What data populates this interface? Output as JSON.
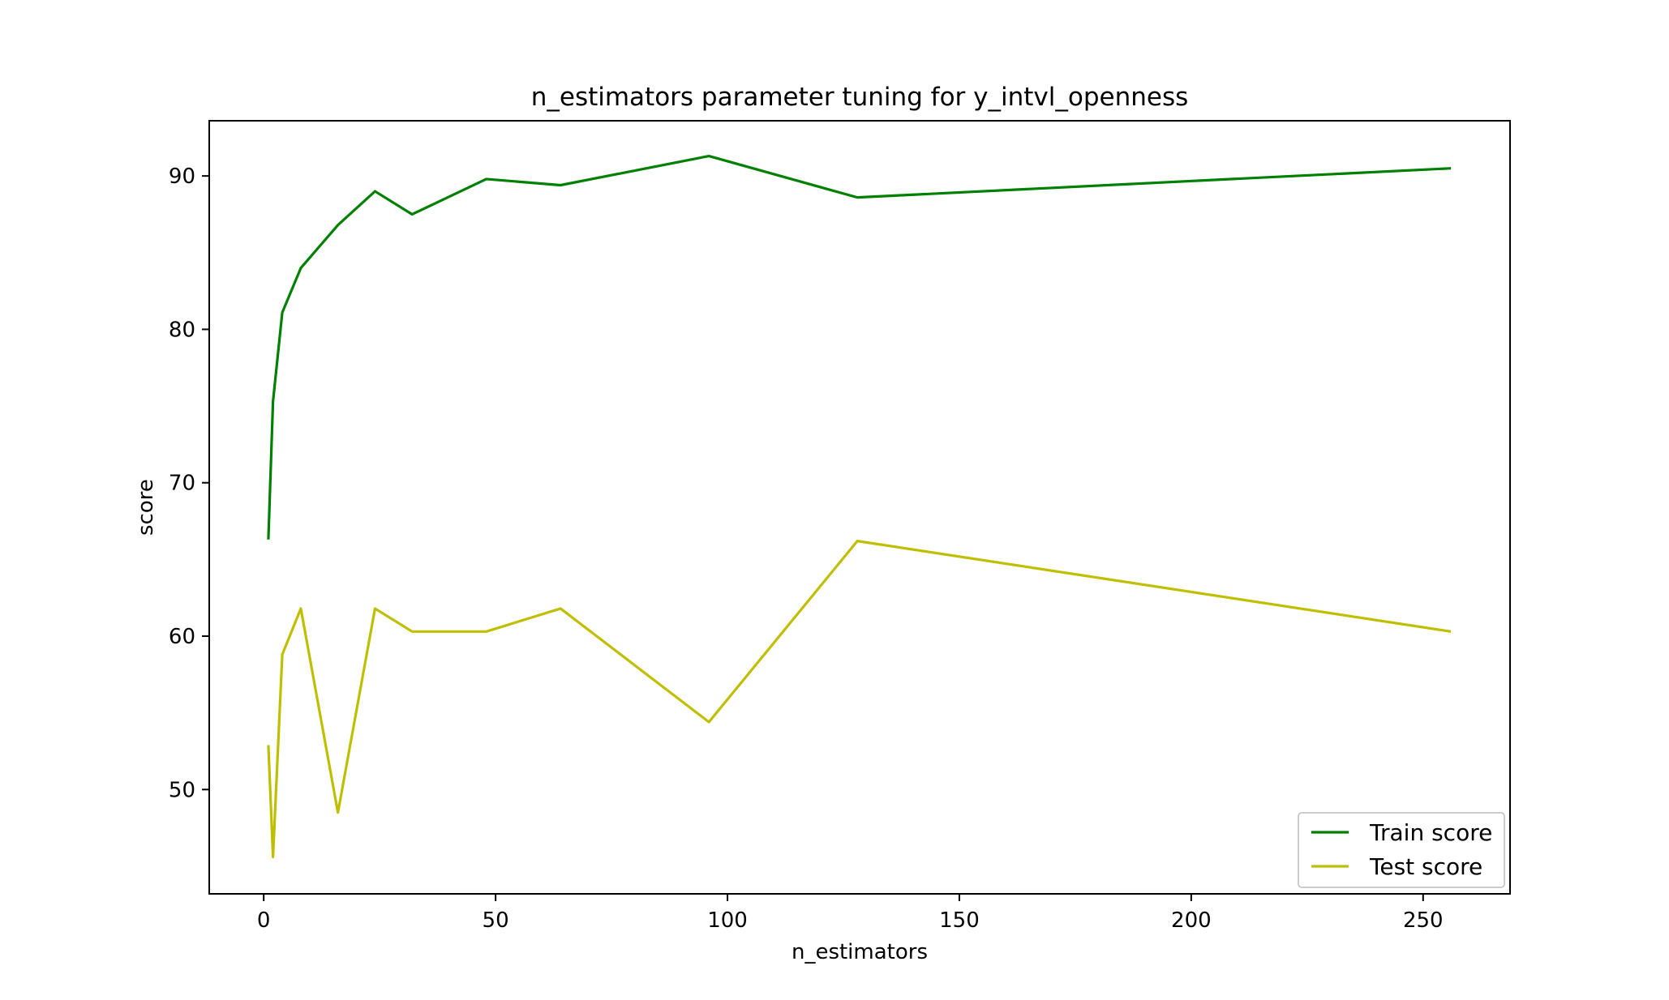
{
  "chart_data": {
    "type": "line",
    "title": "n_estimators parameter tuning for y_intvl_openness",
    "xlabel": "n_estimators",
    "ylabel": "score",
    "x": [
      1,
      2,
      4,
      8,
      16,
      24,
      32,
      48,
      64,
      96,
      128,
      256
    ],
    "xlim": [
      -11.75,
      268.75
    ],
    "ylim": [
      43.2,
      93.6
    ],
    "xticks": [
      0,
      50,
      100,
      150,
      200,
      250
    ],
    "yticks": [
      50,
      60,
      70,
      80,
      90
    ],
    "grid": false,
    "legend_position": "lower right",
    "series": [
      {
        "name": "Train score",
        "color": "#008000",
        "values": [
          66.3,
          75.3,
          81.1,
          84.0,
          86.8,
          89.0,
          87.5,
          89.8,
          89.4,
          91.3,
          88.6,
          90.5
        ]
      },
      {
        "name": "Test score",
        "color": "#bfbf00",
        "values": [
          52.9,
          45.6,
          58.8,
          61.8,
          48.5,
          61.8,
          60.3,
          60.3,
          61.8,
          54.4,
          66.2,
          60.3
        ]
      }
    ]
  }
}
